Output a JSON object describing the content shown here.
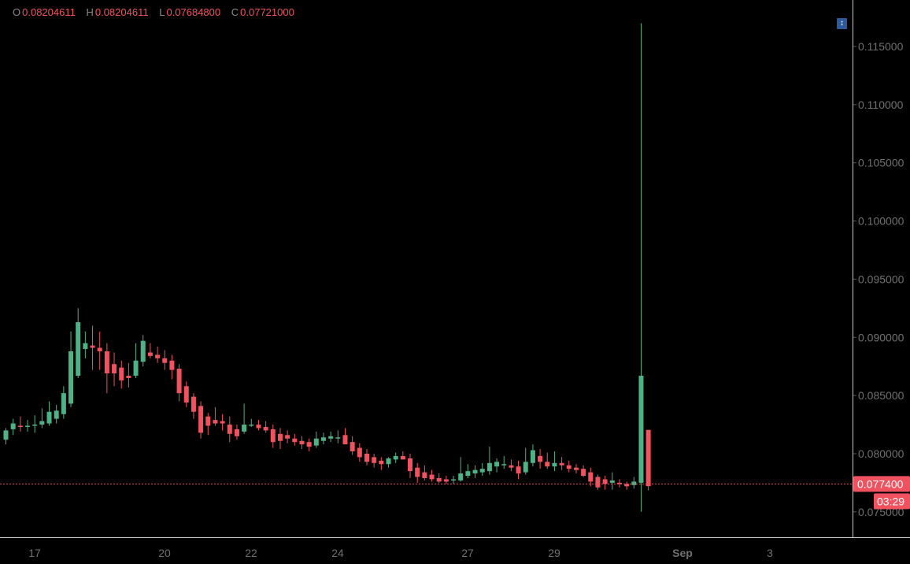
{
  "legend": {
    "o_key": "O",
    "o_val": "0.08204611",
    "h_key": "H",
    "h_val": "0.08204611",
    "l_key": "L",
    "l_val": "0.07684800",
    "c_key": "C",
    "c_val": "0.07721000"
  },
  "toolbar": {
    "icon": "scroll-to-realtime-icon"
  },
  "colors": {
    "up": "#4fb287",
    "down": "#f0525f",
    "background": "#000000",
    "axis_text": "#707070",
    "price_line": "#f0525f",
    "price_label_bg": "#f0525f"
  },
  "chart_data": {
    "type": "candlestick",
    "y_ticks": [
      "0.115000",
      "0.110000",
      "0.105000",
      "0.100000",
      "0.095000",
      "0.090000",
      "0.085000",
      "0.080000",
      "0.075000"
    ],
    "x_ticks": [
      "17",
      "20",
      "22",
      "24",
      "27",
      "29",
      "Sep",
      "3"
    ],
    "last_price": "0.077400",
    "countdown": "03:29",
    "ylim": [
      0.0725,
      0.1175
    ],
    "candles": [
      [
        0.0812,
        0.0822,
        0.0808,
        0.082
      ],
      [
        0.0821,
        0.083,
        0.0816,
        0.0826
      ],
      [
        0.0824,
        0.0832,
        0.0819,
        0.0823
      ],
      [
        0.0823,
        0.0829,
        0.0819,
        0.0824
      ],
      [
        0.0824,
        0.0833,
        0.0818,
        0.0825
      ],
      [
        0.0825,
        0.0839,
        0.0822,
        0.0828
      ],
      [
        0.0826,
        0.0845,
        0.0824,
        0.0836
      ],
      [
        0.083,
        0.0842,
        0.0826,
        0.0837
      ],
      [
        0.0834,
        0.0858,
        0.083,
        0.0852
      ],
      [
        0.0843,
        0.0905,
        0.084,
        0.0888
      ],
      [
        0.0867,
        0.0925,
        0.0865,
        0.0913
      ],
      [
        0.089,
        0.0905,
        0.0882,
        0.0895
      ],
      [
        0.0893,
        0.091,
        0.0872,
        0.0891
      ],
      [
        0.0891,
        0.0905,
        0.0872,
        0.0888
      ],
      [
        0.0888,
        0.0895,
        0.0852,
        0.0869
      ],
      [
        0.0877,
        0.0887,
        0.0858,
        0.0869
      ],
      [
        0.0874,
        0.088,
        0.0856,
        0.0863
      ],
      [
        0.0867,
        0.0878,
        0.0857,
        0.0865
      ],
      [
        0.0867,
        0.0895,
        0.0865,
        0.088
      ],
      [
        0.0879,
        0.0902,
        0.0875,
        0.0897
      ],
      [
        0.0887,
        0.0895,
        0.0882,
        0.0884
      ],
      [
        0.0885,
        0.0892,
        0.0878,
        0.0882
      ],
      [
        0.0882,
        0.0889,
        0.0872,
        0.0878
      ],
      [
        0.088,
        0.0885,
        0.0864,
        0.0872
      ],
      [
        0.0873,
        0.0877,
        0.0845,
        0.0852
      ],
      [
        0.0858,
        0.0862,
        0.084,
        0.0844
      ],
      [
        0.0849,
        0.0852,
        0.083,
        0.0836
      ],
      [
        0.0841,
        0.0845,
        0.0813,
        0.0818
      ],
      [
        0.0832,
        0.0835,
        0.0816,
        0.0824
      ],
      [
        0.0829,
        0.084,
        0.0824,
        0.0826
      ],
      [
        0.0828,
        0.0834,
        0.082,
        0.0826
      ],
      [
        0.0825,
        0.0832,
        0.081,
        0.0817
      ],
      [
        0.0821,
        0.0825,
        0.0812,
        0.0815
      ],
      [
        0.0819,
        0.0843,
        0.0817,
        0.0825
      ],
      [
        0.0825,
        0.083,
        0.0823,
        0.0825
      ],
      [
        0.0825,
        0.0829,
        0.082,
        0.0822
      ],
      [
        0.0823,
        0.0828,
        0.0818,
        0.082
      ],
      [
        0.0821,
        0.0825,
        0.0805,
        0.081
      ],
      [
        0.0817,
        0.0822,
        0.0804,
        0.0811
      ],
      [
        0.0816,
        0.082,
        0.0809,
        0.0813
      ],
      [
        0.0813,
        0.0817,
        0.0807,
        0.081
      ],
      [
        0.0811,
        0.0815,
        0.0804,
        0.0808
      ],
      [
        0.081,
        0.0813,
        0.0802,
        0.0806
      ],
      [
        0.0807,
        0.0819,
        0.0805,
        0.0813
      ],
      [
        0.0811,
        0.0818,
        0.0808,
        0.0814
      ],
      [
        0.0813,
        0.0819,
        0.081,
        0.0815
      ],
      [
        0.0813,
        0.082,
        0.0809,
        0.0814
      ],
      [
        0.0816,
        0.0822,
        0.0808,
        0.0808
      ],
      [
        0.081,
        0.0815,
        0.0799,
        0.0802
      ],
      [
        0.0805,
        0.0809,
        0.0793,
        0.0797
      ],
      [
        0.08,
        0.0804,
        0.079,
        0.0793
      ],
      [
        0.0797,
        0.08,
        0.0788,
        0.0792
      ],
      [
        0.0794,
        0.0797,
        0.0786,
        0.0791
      ],
      [
        0.0791,
        0.0797,
        0.0788,
        0.0796
      ],
      [
        0.0795,
        0.0801,
        0.0792,
        0.0798
      ],
      [
        0.0798,
        0.0802,
        0.0795,
        0.0795
      ],
      [
        0.0796,
        0.08,
        0.0779,
        0.0785
      ],
      [
        0.0788,
        0.0792,
        0.0775,
        0.078
      ],
      [
        0.0784,
        0.079,
        0.0777,
        0.0779
      ],
      [
        0.0782,
        0.0786,
        0.0776,
        0.0778
      ],
      [
        0.0779,
        0.0783,
        0.0775,
        0.0776
      ],
      [
        0.0778,
        0.0781,
        0.0774,
        0.0776
      ],
      [
        0.0777,
        0.0781,
        0.0774,
        0.0778
      ],
      [
        0.0777,
        0.0797,
        0.0776,
        0.0783
      ],
      [
        0.0781,
        0.0791,
        0.0779,
        0.0785
      ],
      [
        0.0783,
        0.079,
        0.0779,
        0.0786
      ],
      [
        0.0784,
        0.0792,
        0.0781,
        0.0787
      ],
      [
        0.0785,
        0.0806,
        0.0782,
        0.0792
      ],
      [
        0.0789,
        0.0796,
        0.0784,
        0.0793
      ],
      [
        0.0791,
        0.0798,
        0.0787,
        0.0791
      ],
      [
        0.079,
        0.0795,
        0.0785,
        0.0788
      ],
      [
        0.0789,
        0.0794,
        0.0778,
        0.0783
      ],
      [
        0.0784,
        0.0805,
        0.0782,
        0.0793
      ],
      [
        0.0792,
        0.0808,
        0.0789,
        0.0803
      ],
      [
        0.0798,
        0.0804,
        0.0787,
        0.0793
      ],
      [
        0.0793,
        0.0801,
        0.0787,
        0.0789
      ],
      [
        0.0789,
        0.0802,
        0.0785,
        0.0792
      ],
      [
        0.0792,
        0.0797,
        0.0786,
        0.079
      ],
      [
        0.079,
        0.0794,
        0.0784,
        0.0787
      ],
      [
        0.0788,
        0.0791,
        0.0783,
        0.0786
      ],
      [
        0.0787,
        0.079,
        0.078,
        0.0781
      ],
      [
        0.0784,
        0.0788,
        0.0772,
        0.0776
      ],
      [
        0.078,
        0.0782,
        0.0769,
        0.0771
      ],
      [
        0.0778,
        0.0781,
        0.0769,
        0.0774
      ],
      [
        0.0775,
        0.0784,
        0.0769,
        0.0777
      ],
      [
        0.0775,
        0.0778,
        0.0771,
        0.0774
      ],
      [
        0.0774,
        0.0776,
        0.0769,
        0.0772
      ],
      [
        0.0773,
        0.078,
        0.077,
        0.0776
      ],
      [
        0.0775,
        0.117,
        0.075,
        0.0867
      ],
      [
        0.08204611,
        0.08204611,
        0.076848,
        0.07721
      ]
    ]
  }
}
